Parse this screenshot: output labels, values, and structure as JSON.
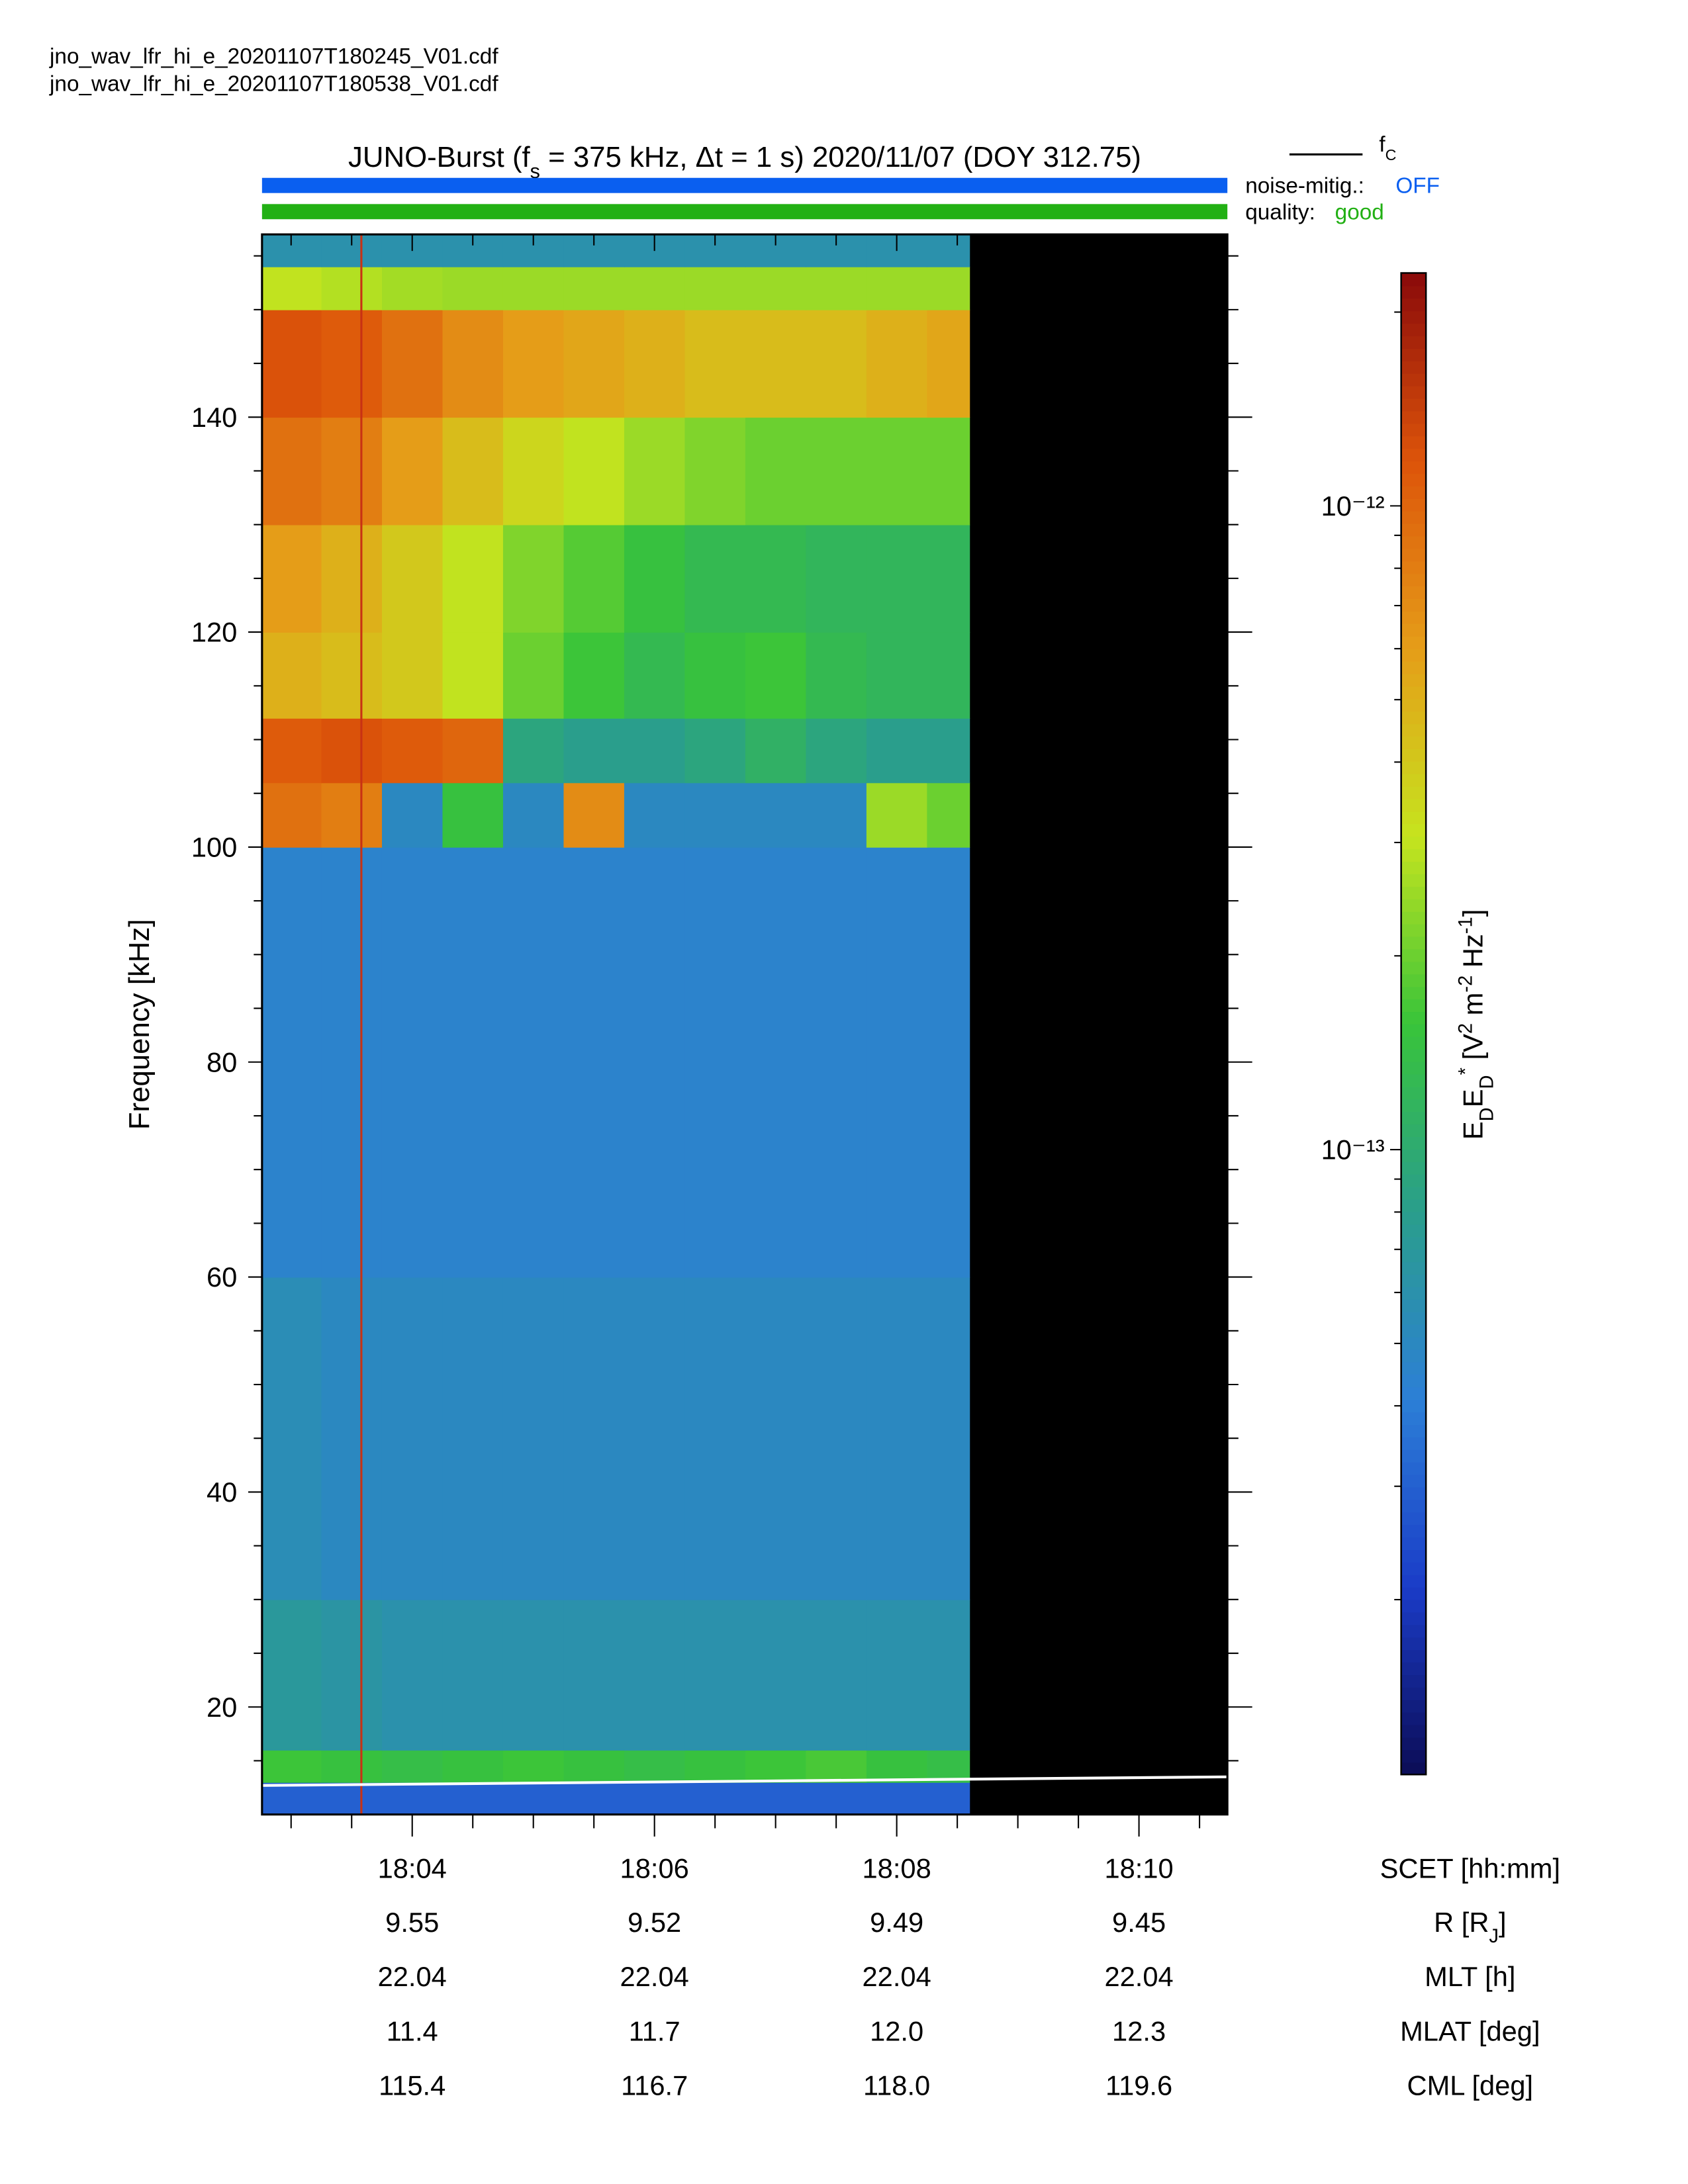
{
  "chart_data": {
    "type": "spectrogram",
    "files": [
      "jno_wav_lfr_hi_e_20201107T180245_V01.cdf",
      "jno_wav_lfr_hi_e_20201107T180538_V01.cdf"
    ],
    "title_parts": [
      {
        "t": "JUNO-Burst (f",
        "s": ""
      },
      {
        "t": "s",
        "s": "sub"
      },
      {
        "t": " = 375 kHz, Δt = 1 s)  2020/11/07 (DOY 312.75)",
        "s": ""
      }
    ],
    "status": {
      "noise_label": "noise-mitig.:",
      "noise_value": "OFF",
      "noise_color": "#0a5ff0",
      "quality_label": "quality:",
      "quality_value": "good",
      "quality_color": "#22b014"
    },
    "ylabel": "Frequency [kHz]",
    "xlabel": "SCET [hh:mm]",
    "xlim": [
      1082.76,
      1090.73
    ],
    "xticks": [
      {
        "value": 1084,
        "label": "18:04"
      },
      {
        "value": 1086,
        "label": "18:06"
      },
      {
        "value": 1088,
        "label": "18:08"
      },
      {
        "value": 1090,
        "label": "18:10"
      }
    ],
    "xminorticks": [
      1083,
      1083.5,
      1084.5,
      1085,
      1085.5,
      1086.5,
      1087,
      1087.5,
      1088.5,
      1089,
      1089.5,
      1090.5
    ],
    "ylim": [
      10,
      157
    ],
    "yticks": [
      20,
      40,
      60,
      80,
      100,
      120,
      140
    ],
    "yminorticks": [
      15,
      25,
      30,
      35,
      45,
      50,
      55,
      65,
      70,
      75,
      85,
      90,
      95,
      105,
      110,
      115,
      125,
      130,
      135,
      145,
      150,
      155
    ],
    "time_edges": [
      1082.76,
      1083.25,
      1083.75,
      1084.25,
      1084.75,
      1085.25,
      1085.75,
      1086.25,
      1086.75,
      1087.25,
      1087.75,
      1088.25,
      1088.6
    ],
    "freq_edges": [
      10,
      13,
      16,
      30,
      60,
      100,
      106,
      112,
      120,
      130,
      140,
      150,
      154,
      157
    ],
    "z": [
      [
        3e-14,
        3e-14,
        3e-14,
        3e-14,
        3e-14,
        3e-14,
        3e-14,
        3e-14,
        3e-14,
        3e-14,
        3e-14,
        3e-14
      ],
      [
        1.6e-13,
        1.5e-13,
        1.4e-13,
        1.5e-13,
        1.6e-13,
        1.5e-13,
        1.4e-13,
        1.5e-13,
        1.6e-13,
        1.7e-13,
        1.5e-13,
        1.4e-13
      ],
      [
        7e-14,
        6.5e-14,
        6e-14,
        6e-14,
        6e-14,
        6e-14,
        6e-14,
        6e-14,
        6e-14,
        6e-14,
        6e-14,
        6e-14
      ],
      [
        5.5e-14,
        5e-14,
        5e-14,
        5e-14,
        5e-14,
        5e-14,
        5e-14,
        5e-14,
        5e-14,
        5e-14,
        5e-14,
        5e-14
      ],
      [
        4.5e-14,
        4.5e-14,
        4.5e-14,
        4.5e-14,
        4.5e-14,
        4.5e-14,
        4.5e-14,
        4.5e-14,
        4.5e-14,
        4.5e-14,
        4.5e-14,
        4.5e-14
      ],
      [
        9e-13,
        8e-13,
        5e-14,
        1.5e-13,
        5e-14,
        7e-13,
        5e-14,
        5e-14,
        5e-14,
        5e-14,
        2.5e-13,
        2e-13
      ],
      [
        1.1e-12,
        1.2e-12,
        1.1e-12,
        1e-12,
        9e-14,
        8e-14,
        8e-14,
        9e-14,
        1.1e-13,
        9e-14,
        8e-14,
        8e-14
      ],
      [
        5e-13,
        4.5e-13,
        4e-13,
        3e-13,
        2e-13,
        1.6e-13,
        1.3e-13,
        1.5e-13,
        1.6e-13,
        1.3e-13,
        1.2e-13,
        1.2e-13
      ],
      [
        6e-13,
        5e-13,
        4e-13,
        3e-13,
        2.2e-13,
        1.8e-13,
        1.5e-13,
        1.3e-13,
        1.3e-13,
        1.2e-13,
        1.2e-13,
        1.2e-13
      ],
      [
        9e-13,
        8e-13,
        6e-13,
        4.5e-13,
        3.5e-13,
        3e-13,
        2.5e-13,
        2.2e-13,
        2e-13,
        2e-13,
        2e-13,
        2e-13
      ],
      [
        1.2e-12,
        1.1e-12,
        9e-13,
        7e-13,
        6e-13,
        5.5e-13,
        5e-13,
        4.5e-13,
        4.5e-13,
        4.5e-13,
        5e-13,
        5.5e-13
      ],
      [
        3e-13,
        2.8e-13,
        2.6e-13,
        2.5e-13,
        2.5e-13,
        2.5e-13,
        2.5e-13,
        2.5e-13,
        2.5e-13,
        2.5e-13,
        2.5e-13,
        2.5e-13
      ],
      [
        6e-14,
        6e-14,
        6e-14,
        6e-14,
        6e-14,
        6e-14,
        6e-14,
        6e-14,
        6e-14,
        6e-14,
        6e-14,
        6e-14
      ]
    ],
    "zlog": true,
    "zlim": [
      1.07e-14,
      2.3e-12
    ],
    "zticks": [
      {
        "value": 1e-13,
        "label": "10⁻¹³"
      },
      {
        "value": 1e-12,
        "label": "10⁻¹²"
      }
    ],
    "zminorticks": [
      2e-14,
      3e-14,
      4e-14,
      5e-14,
      6e-14,
      7e-14,
      8e-14,
      9e-14,
      2e-13,
      3e-13,
      4e-13,
      5e-13,
      6e-13,
      7e-13,
      8e-13,
      9e-13,
      2e-12
    ],
    "zlabel_parts": [
      {
        "t": "E",
        "s": ""
      },
      {
        "t": "D",
        "s": "sub"
      },
      {
        "t": "E",
        "s": ""
      },
      {
        "t": "D",
        "s": "sub"
      },
      {
        "t": "*",
        "s": "sup"
      },
      {
        "t": " [V",
        "s": ""
      },
      {
        "t": "2",
        "s": "sup"
      },
      {
        "t": " m",
        "s": ""
      },
      {
        "t": "-2",
        "s": "sup"
      },
      {
        "t": " Hz",
        "s": ""
      },
      {
        "t": "-1",
        "s": "sup"
      },
      {
        "t": "]",
        "s": ""
      }
    ],
    "colormap": [
      "#0c0c55",
      "#1a3cc8",
      "#2c7fd6",
      "#2a9e8c",
      "#38c43a",
      "#c6e41e",
      "#e59d18",
      "#dd540a",
      "#8a0a0a"
    ],
    "nodata_color": "#000000",
    "marker_x": 1083.58,
    "marker_color": "#c83214",
    "series": [
      {
        "name": "f",
        "name_sub": "C",
        "color": "#ffffff",
        "x": [
          1082.76,
          1090.73
        ],
        "values": [
          12.7,
          13.5
        ]
      }
    ],
    "ephemeris": [
      {
        "label_parts": [
          {
            "t": "R [R",
            "s": ""
          },
          {
            "t": "J",
            "s": "sub"
          },
          {
            "t": "]",
            "s": ""
          }
        ],
        "values": [
          9.55,
          9.52,
          9.49,
          9.45
        ]
      },
      {
        "label_parts": [
          {
            "t": "MLT [h]",
            "s": ""
          }
        ],
        "values": [
          22.04,
          22.04,
          22.04,
          22.04
        ]
      },
      {
        "label_parts": [
          {
            "t": "MLAT [deg]",
            "s": ""
          }
        ],
        "values": [
          11.4,
          11.7,
          12.0,
          12.3
        ],
        "value_labels": [
          "11.4",
          "11.7",
          "12.0",
          "12.3"
        ]
      },
      {
        "label_parts": [
          {
            "t": "CML [deg]",
            "s": ""
          }
        ],
        "values": [
          115.4,
          116.7,
          118.0,
          119.6
        ],
        "value_labels": [
          "115.4",
          "116.7",
          "118.0",
          "119.6"
        ]
      }
    ]
  }
}
